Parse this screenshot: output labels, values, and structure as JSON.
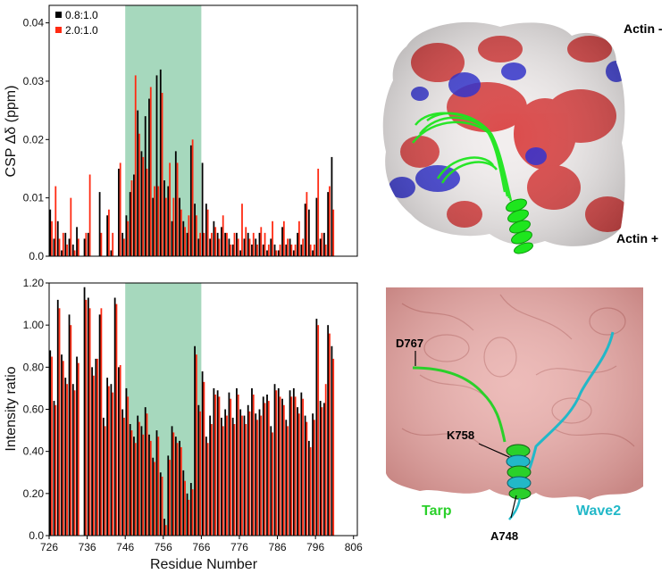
{
  "chart_data": [
    {
      "type": "bar",
      "ylabel": "CSP Δδ  (ppm)",
      "xlim": [
        726,
        807
      ],
      "ylim": [
        0,
        0.043
      ],
      "y_ticks": [
        0.0,
        0.01,
        0.02,
        0.03,
        0.04
      ],
      "y_tick_labels": [
        "0.0",
        "0.01",
        "0.02",
        "0.03",
        "0.04"
      ],
      "highlight_range": [
        746,
        766
      ],
      "highlight_color": "#a6d8bd",
      "legend": {
        "placement": "top-left"
      },
      "series": [
        {
          "name": "0.8:1.0",
          "color": "#000000",
          "x": [
            726,
            727,
            728,
            729,
            730,
            731,
            732,
            733,
            735,
            736,
            739,
            741,
            742,
            744,
            745,
            746,
            747,
            748,
            749,
            750,
            751,
            752,
            753,
            754,
            755,
            756,
            757,
            758,
            759,
            760,
            761,
            762,
            763,
            764,
            765,
            766,
            767,
            768,
            769,
            770,
            771,
            772,
            773,
            774,
            775,
            776,
            777,
            778,
            779,
            780,
            781,
            782,
            783,
            784,
            785,
            786,
            787,
            788,
            789,
            790,
            791,
            792,
            793,
            794,
            795,
            796,
            797,
            798,
            799,
            800
          ],
          "values": [
            0.008,
            0.003,
            0.006,
            0.001,
            0.004,
            0.003,
            0.002,
            0.005,
            0.003,
            0.004,
            0.011,
            0.007,
            0.001,
            0.015,
            0.004,
            0.007,
            0.011,
            0.014,
            0.025,
            0.018,
            0.024,
            0.027,
            0.01,
            0.031,
            0.032,
            0.013,
            0.012,
            0.006,
            0.018,
            0.01,
            0.006,
            0.004,
            0.019,
            0.009,
            0.003,
            0.016,
            0.009,
            0.003,
            0.006,
            0.004,
            0.005,
            0.004,
            0.003,
            0.002,
            0.004,
            0.001,
            0.003,
            0.004,
            0.002,
            0.003,
            0.004,
            0.002,
            0.001,
            0.003,
            0.002,
            0.001,
            0.005,
            0.002,
            0.003,
            0.001,
            0.004,
            0.002,
            0.009,
            0.008,
            0.001,
            0.01,
            0.003,
            0.004,
            0.011,
            0.017
          ]
        },
        {
          "name": "2.0:1.0",
          "color": "#ff2a12",
          "x": [
            726,
            727,
            728,
            729,
            730,
            731,
            732,
            733,
            735,
            736,
            739,
            741,
            742,
            744,
            745,
            746,
            747,
            748,
            749,
            750,
            751,
            752,
            753,
            754,
            755,
            756,
            757,
            758,
            759,
            760,
            761,
            762,
            763,
            764,
            765,
            766,
            767,
            768,
            769,
            770,
            771,
            772,
            773,
            774,
            775,
            776,
            777,
            778,
            779,
            780,
            781,
            782,
            783,
            784,
            785,
            786,
            787,
            788,
            789,
            790,
            791,
            792,
            793,
            794,
            795,
            796,
            797,
            798,
            799,
            800
          ],
          "values": [
            0.006,
            0.012,
            0.003,
            0.004,
            0.002,
            0.01,
            0.001,
            0.003,
            0.004,
            0.014,
            0.004,
            0.008,
            0.004,
            0.016,
            0.003,
            0.006,
            0.013,
            0.031,
            0.021,
            0.017,
            0.015,
            0.029,
            0.012,
            0.012,
            0.028,
            0.01,
            0.016,
            0.01,
            0.016,
            0.008,
            0.005,
            0.007,
            0.02,
            0.007,
            0.004,
            0.004,
            0.008,
            0.004,
            0.005,
            0.003,
            0.007,
            0.004,
            0.002,
            0.004,
            0.003,
            0.009,
            0.005,
            0.003,
            0.004,
            0.002,
            0.005,
            0.004,
            0.002,
            0.006,
            0.001,
            0.002,
            0.006,
            0.003,
            0.002,
            0.002,
            0.006,
            0.003,
            0.011,
            0.002,
            0.002,
            0.015,
            0.004,
            0.002,
            0.012,
            0.008
          ]
        }
      ]
    },
    {
      "type": "bar",
      "xlabel": "Residue Number",
      "ylabel": "Intensity ratio",
      "xlim": [
        726,
        807
      ],
      "ylim": [
        0,
        1.2
      ],
      "x_ticks": [
        726,
        736,
        746,
        756,
        766,
        776,
        786,
        796,
        806
      ],
      "x_tick_labels": [
        "726",
        "736",
        "746",
        "756",
        "766",
        "776",
        "786",
        "796",
        "806"
      ],
      "y_ticks": [
        0.0,
        0.2,
        0.4,
        0.6,
        0.8,
        1.0,
        1.2
      ],
      "y_tick_labels": [
        "0.0",
        "0.20",
        "0.40",
        "0.60",
        "0.80",
        "1.00",
        "1.20"
      ],
      "highlight_range": [
        746,
        766
      ],
      "highlight_color": "#a6d8bd",
      "series": [
        {
          "name": "0.8:1.0",
          "color": "#000000",
          "x": [
            726,
            727,
            728,
            729,
            730,
            731,
            732,
            733,
            735,
            736,
            737,
            738,
            739,
            740,
            741,
            742,
            743,
            744,
            745,
            746,
            747,
            748,
            749,
            750,
            751,
            752,
            753,
            754,
            755,
            756,
            757,
            758,
            759,
            760,
            761,
            762,
            763,
            764,
            765,
            766,
            767,
            768,
            769,
            770,
            771,
            772,
            773,
            774,
            775,
            776,
            777,
            778,
            779,
            780,
            781,
            782,
            783,
            784,
            785,
            786,
            787,
            788,
            789,
            790,
            791,
            792,
            793,
            794,
            795,
            796,
            797,
            798,
            799,
            800
          ],
          "values": [
            0.88,
            0.64,
            1.12,
            0.86,
            0.75,
            1.05,
            0.72,
            0.85,
            1.18,
            1.13,
            0.8,
            0.84,
            1.05,
            0.56,
            0.75,
            0.72,
            1.13,
            0.8,
            0.6,
            0.7,
            0.53,
            0.47,
            0.57,
            0.52,
            0.61,
            0.48,
            0.37,
            0.5,
            0.3,
            0.08,
            0.38,
            0.52,
            0.47,
            0.45,
            0.31,
            0.2,
            0.25,
            0.9,
            0.62,
            0.78,
            0.47,
            0.57,
            0.7,
            0.69,
            0.56,
            0.6,
            0.68,
            0.56,
            0.7,
            0.6,
            0.57,
            0.62,
            0.7,
            0.58,
            0.6,
            0.66,
            0.67,
            0.52,
            0.72,
            0.7,
            0.65,
            0.55,
            0.69,
            0.7,
            0.61,
            0.68,
            0.57,
            0.45,
            0.58,
            1.03,
            0.64,
            0.63,
            1.0,
            0.9
          ]
        },
        {
          "name": "2.0:1.0",
          "color": "#ff2a12",
          "x": [
            726,
            727,
            728,
            729,
            730,
            731,
            732,
            733,
            735,
            736,
            737,
            738,
            739,
            740,
            741,
            742,
            743,
            744,
            745,
            746,
            747,
            748,
            749,
            750,
            751,
            752,
            753,
            754,
            755,
            756,
            757,
            758,
            759,
            760,
            761,
            762,
            763,
            764,
            765,
            766,
            767,
            768,
            769,
            770,
            771,
            772,
            773,
            774,
            775,
            776,
            777,
            778,
            779,
            780,
            781,
            782,
            783,
            784,
            785,
            786,
            787,
            788,
            789,
            790,
            791,
            792,
            793,
            794,
            795,
            796,
            797,
            798,
            799,
            800
          ],
          "values": [
            0.85,
            0.62,
            1.08,
            0.83,
            0.72,
            1.0,
            0.69,
            0.82,
            1.12,
            1.08,
            0.76,
            0.84,
            1.08,
            0.52,
            0.71,
            0.68,
            1.1,
            0.81,
            0.56,
            0.66,
            0.5,
            0.44,
            0.54,
            0.48,
            0.58,
            0.45,
            0.35,
            0.47,
            0.28,
            0.05,
            0.36,
            0.49,
            0.44,
            0.42,
            0.26,
            0.17,
            0.22,
            0.86,
            0.59,
            0.73,
            0.44,
            0.53,
            0.67,
            0.66,
            0.52,
            0.57,
            0.65,
            0.53,
            0.67,
            0.57,
            0.53,
            0.59,
            0.67,
            0.55,
            0.57,
            0.63,
            0.64,
            0.49,
            0.69,
            0.66,
            0.62,
            0.52,
            0.66,
            0.66,
            0.58,
            0.65,
            0.54,
            0.42,
            0.55,
            1.0,
            0.61,
            0.72,
            0.96,
            0.84
          ]
        }
      ]
    }
  ],
  "structure_panels": {
    "top": {
      "label_actin_minus": "Actin -",
      "label_actin_plus": "Actin +",
      "colors": {
        "surface_red": "#d93a3a",
        "surface_blue": "#2a2ad0",
        "surface_white": "#f2eeee",
        "helix": "#1ee61e"
      }
    },
    "bottom": {
      "label_d767": "D767",
      "label_k758": "K758",
      "label_a748": "A748",
      "label_tarp": "Tarp",
      "label_wave2": "Wave2",
      "colors": {
        "surface": "#eab0ad",
        "tarp": "#2ad02a",
        "wave2": "#22b8c8"
      }
    }
  }
}
